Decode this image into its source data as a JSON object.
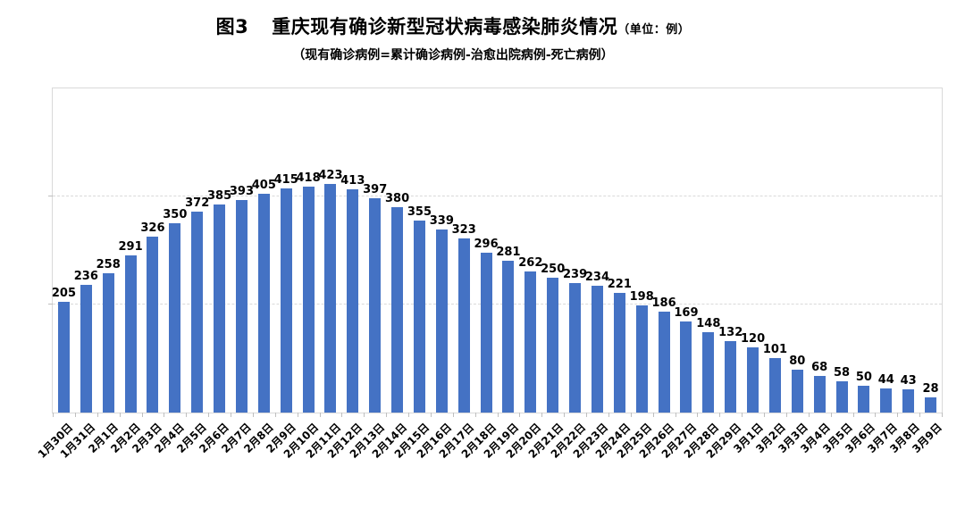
{
  "header": {
    "figure_label": "图3",
    "title": "重庆现有确诊新型冠状病毒感染肺炎情况",
    "unit_note": "（单位：例）",
    "subtitle": "（现有确诊病例=累计确诊病例-治愈出院病例-死亡病例）"
  },
  "chart_data": {
    "type": "bar",
    "title": "图3 重庆现有确诊新型冠状病毒感染肺炎情况（单位：例）",
    "subtitle": "（现有确诊病例=累计确诊病例-治愈出院病例-死亡病例）",
    "xlabel": "",
    "ylabel": "",
    "ylim": [
      0,
      600
    ],
    "gridline_values": [
      200,
      400
    ],
    "grid": "horizontal-dashed",
    "legend": "none",
    "data_labels": true,
    "bar_color": "#4472C4",
    "categories": [
      "1月30日",
      "1月31日",
      "2月1日",
      "2月2日",
      "2月3日",
      "2月4日",
      "2月5日",
      "2月6日",
      "2月7日",
      "2月8日",
      "2月9日",
      "2月10日",
      "2月11日",
      "2月12日",
      "2月13日",
      "2月14日",
      "2月15日",
      "2月16日",
      "2月17日",
      "2月18日",
      "2月19日",
      "2月20日",
      "2月21日",
      "2月22日",
      "2月23日",
      "2月24日",
      "2月25日",
      "2月26日",
      "2月27日",
      "2月28日",
      "2月29日",
      "3月1日",
      "3月2日",
      "3月3日",
      "3月4日",
      "3月5日",
      "3月6日",
      "3月7日",
      "3月8日",
      "3月9日"
    ],
    "values": [
      205,
      236,
      258,
      291,
      326,
      350,
      372,
      385,
      393,
      405,
      415,
      418,
      423,
      413,
      397,
      380,
      355,
      339,
      323,
      296,
      281,
      262,
      250,
      239,
      234,
      221,
      198,
      186,
      169,
      148,
      132,
      120,
      101,
      80,
      68,
      58,
      50,
      44,
      43,
      28
    ]
  },
  "colors": {
    "bar": "#4472C4",
    "gridline": "#d9d9d9",
    "plot_border": "#d9d9d9",
    "axis_tick": "#bfbfbf",
    "text": "#000000",
    "background": "#ffffff"
  }
}
